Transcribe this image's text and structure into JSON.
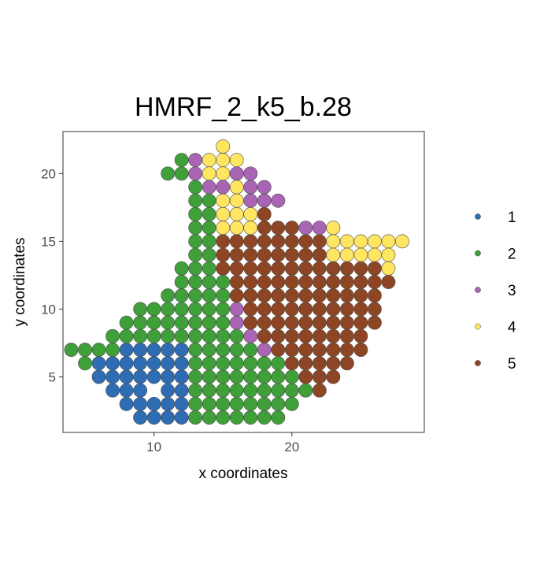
{
  "chart_data": {
    "type": "scatter",
    "title": "HMRF_2_k5_b.28",
    "xlabel": "x coordinates",
    "ylabel": "y coordinates",
    "xlim": [
      3.4,
      29.6
    ],
    "ylim": [
      0.9,
      23.1
    ],
    "x_ticks": [
      10,
      20
    ],
    "y_ticks": [
      5,
      10,
      15,
      20
    ],
    "grid": false,
    "legend": {
      "placement": "right",
      "entries": [
        {
          "label": "1",
          "color": "#2E6DB4"
        },
        {
          "label": "2",
          "color": "#3FA03A"
        },
        {
          "label": "3",
          "color": "#A964B4"
        },
        {
          "label": "4",
          "color": "#FFE560"
        },
        {
          "label": "5",
          "color": "#8E4524"
        }
      ]
    },
    "rows": [
      {
        "y": 22,
        "x": [
          15
        ],
        "c": [
          4
        ]
      },
      {
        "y": 21,
        "x": [
          12,
          13,
          14,
          15,
          16
        ],
        "c": [
          2,
          3,
          4,
          4,
          4
        ]
      },
      {
        "y": 20,
        "x": [
          11,
          12,
          13,
          14,
          15,
          16,
          17
        ],
        "c": [
          2,
          2,
          3,
          4,
          4,
          3,
          3
        ]
      },
      {
        "y": 19,
        "x": [
          13,
          14,
          15,
          16,
          17,
          18
        ],
        "c": [
          2,
          3,
          3,
          4,
          3,
          3
        ]
      },
      {
        "y": 18,
        "x": [
          13,
          14,
          15,
          16,
          17,
          18,
          19
        ],
        "c": [
          2,
          2,
          4,
          4,
          3,
          3,
          3
        ]
      },
      {
        "y": 17,
        "x": [
          13,
          14,
          15,
          16,
          17,
          18
        ],
        "c": [
          2,
          2,
          4,
          4,
          4,
          5
        ]
      },
      {
        "y": 16,
        "x": [
          13,
          14,
          15,
          16,
          17,
          18,
          19,
          20,
          21,
          22,
          23
        ],
        "c": [
          2,
          2,
          4,
          4,
          4,
          5,
          5,
          5,
          3,
          3,
          4
        ]
      },
      {
        "y": 15,
        "x": [
          13,
          14,
          15,
          16,
          17,
          18,
          19,
          20,
          21,
          22,
          23,
          24,
          25,
          26,
          27,
          28
        ],
        "c": [
          2,
          2,
          5,
          5,
          5,
          5,
          5,
          5,
          5,
          5,
          4,
          4,
          4,
          4,
          4,
          4
        ]
      },
      {
        "y": 14,
        "x": [
          13,
          14,
          15,
          16,
          17,
          18,
          19,
          20,
          21,
          22,
          23,
          24,
          25,
          26,
          27
        ],
        "c": [
          2,
          2,
          5,
          5,
          5,
          5,
          5,
          5,
          5,
          5,
          4,
          4,
          4,
          4,
          4
        ]
      },
      {
        "y": 13,
        "x": [
          12,
          13,
          14,
          15,
          16,
          17,
          18,
          19,
          20,
          21,
          22,
          23,
          24,
          25,
          26,
          27
        ],
        "c": [
          2,
          2,
          2,
          5,
          5,
          5,
          5,
          5,
          5,
          5,
          5,
          5,
          5,
          5,
          5,
          4
        ]
      },
      {
        "y": 12,
        "x": [
          12,
          13,
          14,
          15,
          16,
          17,
          18,
          19,
          20,
          21,
          22,
          23,
          24,
          25,
          26,
          27
        ],
        "c": [
          2,
          2,
          2,
          2,
          5,
          5,
          5,
          5,
          5,
          5,
          5,
          5,
          5,
          5,
          5,
          5
        ]
      },
      {
        "y": 11,
        "x": [
          11,
          12,
          13,
          14,
          15,
          16,
          17,
          18,
          19,
          20,
          21,
          22,
          23,
          24,
          25,
          26
        ],
        "c": [
          2,
          2,
          2,
          2,
          2,
          5,
          5,
          5,
          5,
          5,
          5,
          5,
          5,
          5,
          5,
          5
        ]
      },
      {
        "y": 10,
        "x": [
          9,
          10,
          11,
          12,
          13,
          14,
          15,
          16,
          17,
          18,
          19,
          20,
          21,
          22,
          23,
          24,
          25,
          26
        ],
        "c": [
          2,
          2,
          2,
          2,
          2,
          2,
          2,
          3,
          5,
          5,
          5,
          5,
          5,
          5,
          5,
          5,
          5,
          5
        ]
      },
      {
        "y": 9,
        "x": [
          8,
          9,
          10,
          11,
          12,
          13,
          14,
          15,
          16,
          17,
          18,
          19,
          20,
          21,
          22,
          23,
          24,
          25,
          26
        ],
        "c": [
          2,
          2,
          2,
          2,
          2,
          2,
          2,
          2,
          3,
          5,
          5,
          5,
          5,
          5,
          5,
          5,
          5,
          5,
          5
        ]
      },
      {
        "y": 8,
        "x": [
          7,
          8,
          9,
          10,
          11,
          12,
          13,
          14,
          15,
          16,
          17,
          18,
          19,
          20,
          21,
          22,
          23,
          24,
          25
        ],
        "c": [
          2,
          2,
          2,
          2,
          2,
          2,
          2,
          2,
          2,
          2,
          3,
          5,
          5,
          5,
          5,
          5,
          5,
          5,
          5
        ]
      },
      {
        "y": 7,
        "x": [
          4,
          5,
          6,
          7,
          8,
          9,
          10,
          11,
          12,
          13,
          14,
          15,
          16,
          17,
          18,
          19,
          20,
          21,
          22,
          23,
          24,
          25
        ],
        "c": [
          2,
          2,
          2,
          2,
          1,
          1,
          1,
          1,
          1,
          2,
          2,
          2,
          2,
          2,
          3,
          5,
          5,
          5,
          5,
          5,
          5,
          5
        ]
      },
      {
        "y": 6,
        "x": [
          5,
          6,
          7,
          8,
          9,
          10,
          11,
          12,
          13,
          14,
          15,
          16,
          17,
          18,
          19,
          20,
          21,
          22,
          23,
          24
        ],
        "c": [
          2,
          1,
          1,
          1,
          1,
          1,
          1,
          1,
          2,
          2,
          2,
          2,
          2,
          2,
          2,
          5,
          5,
          5,
          5,
          5
        ]
      },
      {
        "y": 5,
        "x": [
          6,
          7,
          8,
          9,
          10,
          11,
          12,
          13,
          14,
          15,
          16,
          17,
          18,
          19,
          20,
          21,
          22,
          23
        ],
        "c": [
          1,
          1,
          1,
          1,
          1,
          1,
          1,
          2,
          2,
          2,
          2,
          2,
          2,
          2,
          2,
          5,
          5,
          5
        ]
      },
      {
        "y": 4,
        "x": [
          7,
          8,
          9,
          11,
          12,
          13,
          14,
          15,
          16,
          17,
          18,
          19,
          20,
          21,
          22
        ],
        "c": [
          1,
          1,
          1,
          1,
          1,
          2,
          2,
          2,
          2,
          2,
          2,
          2,
          2,
          2,
          5
        ]
      },
      {
        "y": 3,
        "x": [
          8,
          9,
          10,
          11,
          12,
          13,
          14,
          15,
          16,
          17,
          18,
          19,
          20
        ],
        "c": [
          1,
          1,
          1,
          1,
          1,
          2,
          2,
          2,
          2,
          2,
          2,
          2,
          2
        ]
      },
      {
        "y": 2,
        "x": [
          9,
          10,
          11,
          12,
          13,
          14,
          15,
          16,
          17,
          18,
          19
        ],
        "c": [
          1,
          1,
          1,
          1,
          2,
          2,
          2,
          2,
          2,
          2,
          2
        ]
      }
    ]
  }
}
